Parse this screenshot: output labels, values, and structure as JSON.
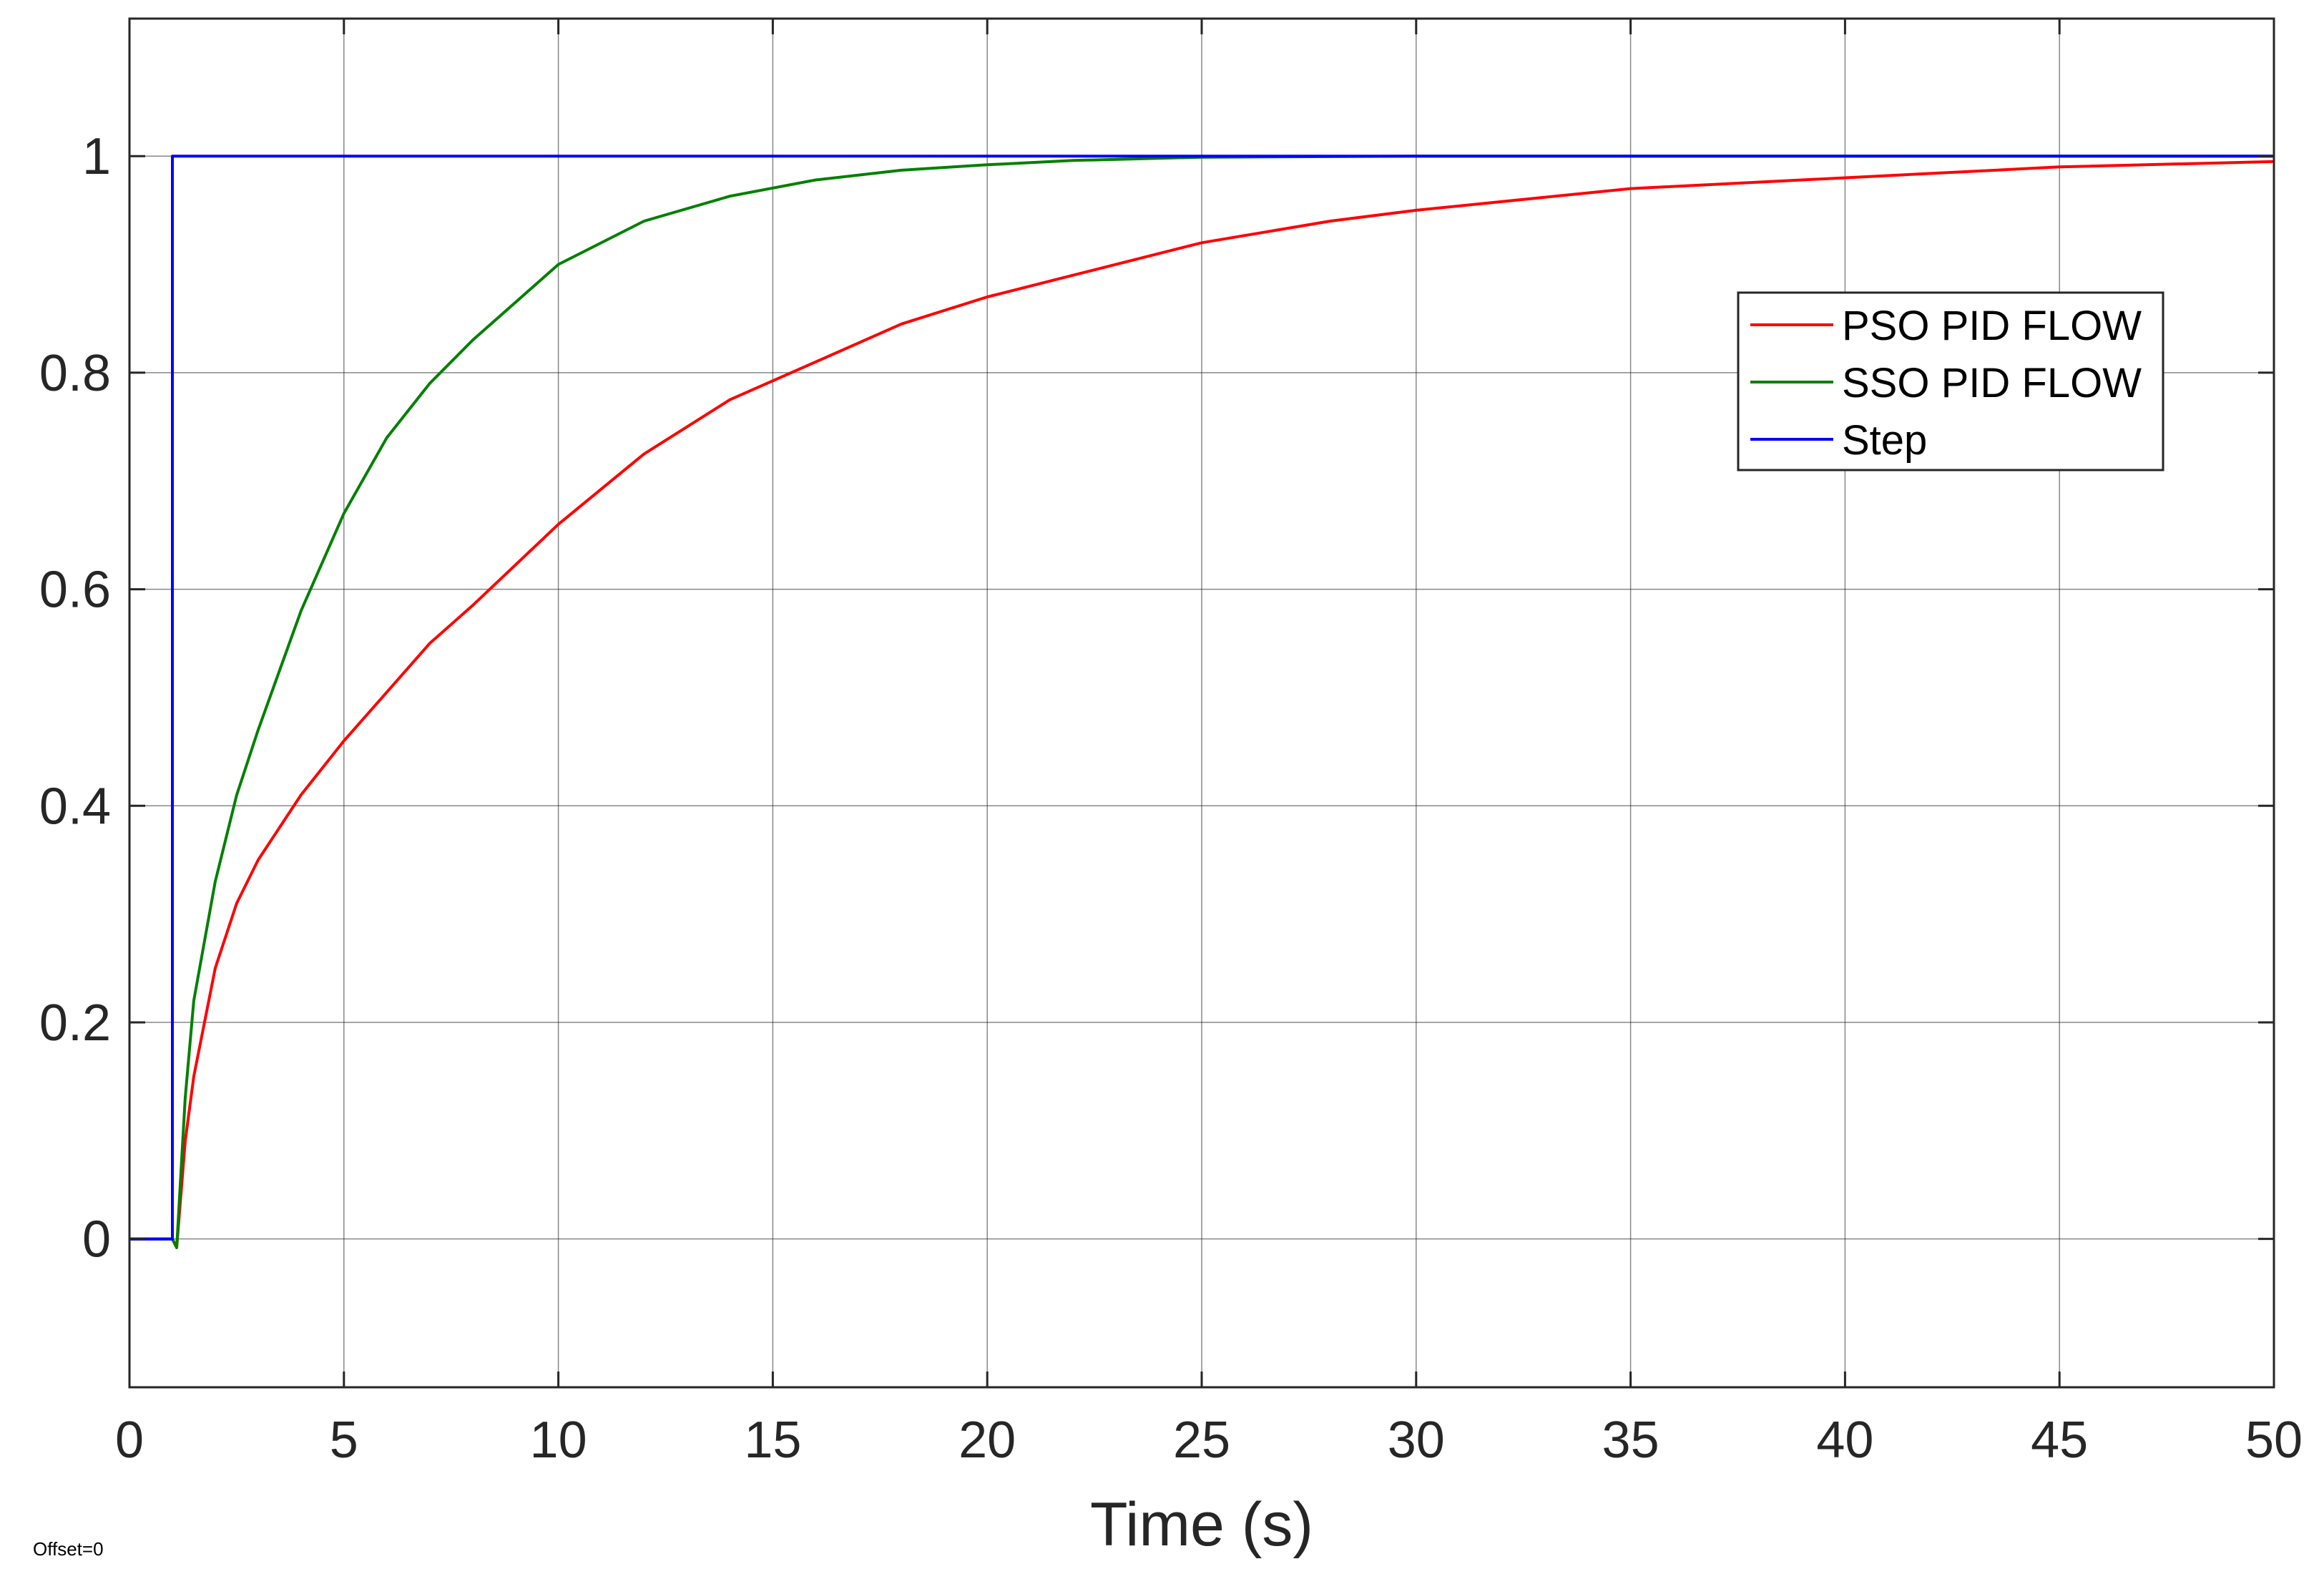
{
  "chart_data": {
    "type": "line",
    "xlabel": "Time (s)",
    "ylabel": "",
    "xlim": [
      0,
      50
    ],
    "ylim": [
      -0.137,
      1.127
    ],
    "x_ticks": [
      0,
      5,
      10,
      15,
      20,
      25,
      30,
      35,
      40,
      45,
      50
    ],
    "x_tick_labels": [
      "0",
      "5",
      "10",
      "15",
      "20",
      "25",
      "30",
      "35",
      "40",
      "45",
      "50"
    ],
    "y_ticks": [
      0,
      0.2,
      0.4,
      0.6,
      0.8,
      1
    ],
    "y_tick_labels": [
      "0",
      "0.2",
      "0.4",
      "0.6",
      "0.8",
      "1"
    ],
    "grid": true,
    "legend_position": "top-right",
    "series": [
      {
        "name": "PSO PID FLOW",
        "color": "#ff0000",
        "x": [
          0,
          1,
          1.1,
          1.3,
          1.5,
          2,
          2.5,
          3,
          4,
          5,
          6,
          7,
          8,
          10,
          12,
          14,
          16,
          18,
          20,
          22,
          25,
          28,
          30,
          35,
          40,
          45,
          50
        ],
        "y": [
          0,
          0,
          -0.008,
          0.09,
          0.15,
          0.25,
          0.31,
          0.35,
          0.41,
          0.46,
          0.505,
          0.55,
          0.585,
          0.66,
          0.725,
          0.775,
          0.81,
          0.845,
          0.87,
          0.89,
          0.92,
          0.94,
          0.95,
          0.97,
          0.98,
          0.99,
          0.995
        ]
      },
      {
        "name": "SSO PID FLOW",
        "color": "#008000",
        "x": [
          0,
          1,
          1.1,
          1.3,
          1.5,
          2,
          2.5,
          3,
          4,
          5,
          6,
          7,
          8,
          10,
          12,
          14,
          16,
          18,
          20,
          22,
          25,
          30,
          40,
          50
        ],
        "y": [
          0,
          0,
          -0.008,
          0.13,
          0.22,
          0.33,
          0.41,
          0.47,
          0.58,
          0.67,
          0.74,
          0.79,
          0.83,
          0.9,
          0.94,
          0.963,
          0.978,
          0.987,
          0.992,
          0.996,
          0.999,
          1,
          1,
          1
        ]
      },
      {
        "name": "Step",
        "color": "#0000ff",
        "x": [
          0,
          1,
          1,
          50
        ],
        "y": [
          0,
          0,
          1,
          1
        ]
      }
    ]
  },
  "footnote": "Offset=0"
}
